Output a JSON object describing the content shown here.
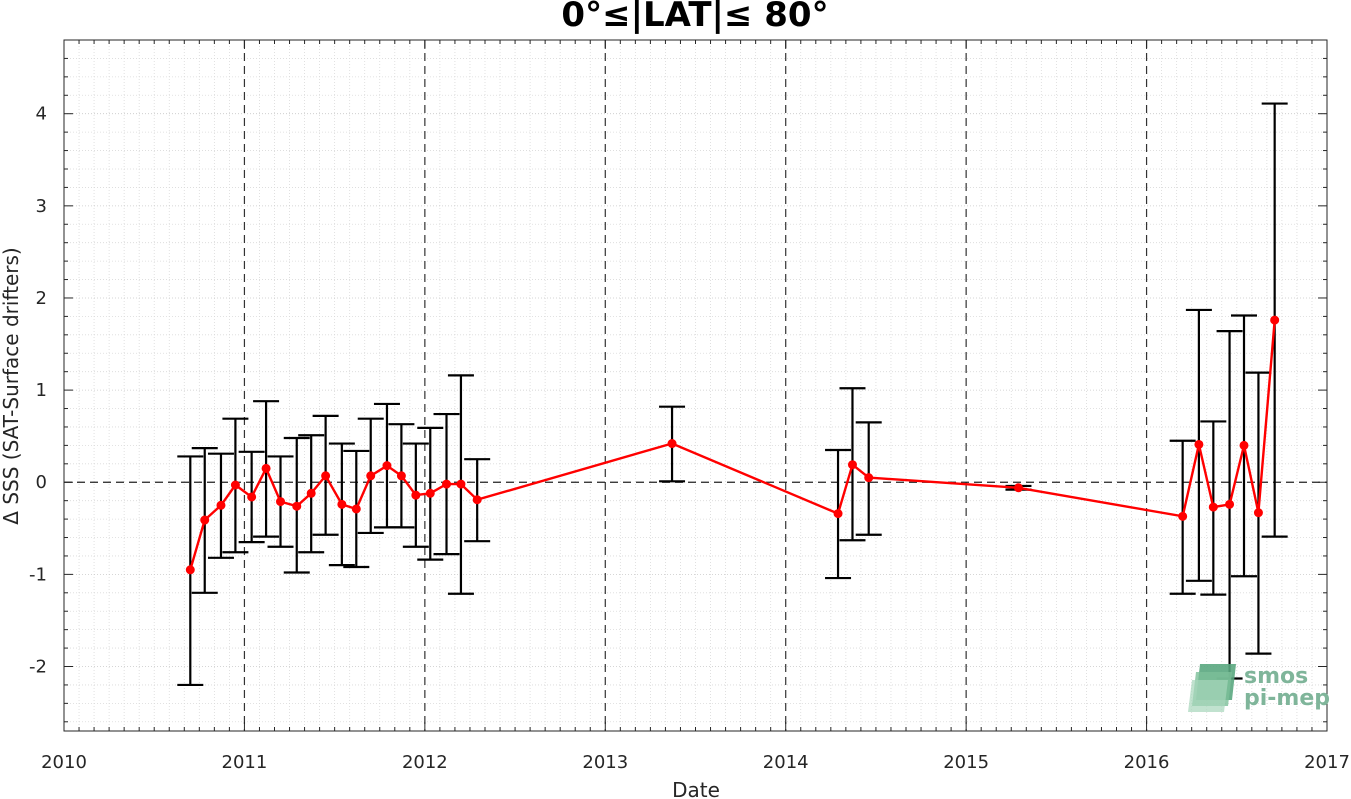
{
  "chart_data": {
    "type": "line",
    "title": "0°≤|LAT|≤ 80°",
    "xlabel": "Date",
    "ylabel": "Δ SSS (SAT-Surface drifters)",
    "xlim": [
      2010,
      2017
    ],
    "ylim": [
      -2.7,
      4.8
    ],
    "x_ticks": [
      "2010",
      "2011",
      "2012",
      "2013",
      "2014",
      "2015",
      "2016",
      "2017"
    ],
    "y_ticks": [
      "-2",
      "-1",
      "0",
      "1",
      "2",
      "3",
      "4"
    ],
    "grid": "major dashed vertical at years, minor dotted",
    "zero_line": true,
    "series": [
      {
        "color": "#ff0000",
        "errorbar_color": "#000000",
        "points": [
          {
            "x": 2010.7,
            "y": -0.95,
            "low": -2.2,
            "high": 0.28
          },
          {
            "x": 2010.78,
            "y": -0.41,
            "low": -1.2,
            "high": 0.37
          },
          {
            "x": 2010.87,
            "y": -0.25,
            "low": -0.82,
            "high": 0.31
          },
          {
            "x": 2010.95,
            "y": -0.03,
            "low": -0.76,
            "high": 0.69
          },
          {
            "x": 2011.04,
            "y": -0.16,
            "low": -0.65,
            "high": 0.33
          },
          {
            "x": 2011.12,
            "y": 0.15,
            "low": -0.59,
            "high": 0.88
          },
          {
            "x": 2011.2,
            "y": -0.21,
            "low": -0.7,
            "high": 0.28
          },
          {
            "x": 2011.29,
            "y": -0.26,
            "low": -0.98,
            "high": 0.48
          },
          {
            "x": 2011.37,
            "y": -0.12,
            "low": -0.76,
            "high": 0.51
          },
          {
            "x": 2011.45,
            "y": 0.07,
            "low": -0.57,
            "high": 0.72
          },
          {
            "x": 2011.54,
            "y": -0.24,
            "low": -0.9,
            "high": 0.42
          },
          {
            "x": 2011.62,
            "y": -0.29,
            "low": -0.92,
            "high": 0.34
          },
          {
            "x": 2011.7,
            "y": 0.07,
            "low": -0.55,
            "high": 0.69
          },
          {
            "x": 2011.79,
            "y": 0.18,
            "low": -0.49,
            "high": 0.85
          },
          {
            "x": 2011.87,
            "y": 0.07,
            "low": -0.49,
            "high": 0.63
          },
          {
            "x": 2011.95,
            "y": -0.14,
            "low": -0.7,
            "high": 0.42
          },
          {
            "x": 2012.03,
            "y": -0.12,
            "low": -0.84,
            "high": 0.59
          },
          {
            "x": 2012.12,
            "y": -0.02,
            "low": -0.78,
            "high": 0.74
          },
          {
            "x": 2012.2,
            "y": -0.02,
            "low": -1.21,
            "high": 1.16
          },
          {
            "x": 2012.29,
            "y": -0.19,
            "low": -0.64,
            "high": 0.25
          },
          {
            "x": 2013.37,
            "y": 0.42,
            "low": 0.01,
            "high": 0.82
          },
          {
            "x": 2014.29,
            "y": -0.34,
            "low": -1.04,
            "high": 0.35
          },
          {
            "x": 2014.37,
            "y": 0.19,
            "low": -0.63,
            "high": 1.02
          },
          {
            "x": 2014.46,
            "y": 0.05,
            "low": -0.57,
            "high": 0.65
          },
          {
            "x": 2015.29,
            "y": -0.06,
            "low": -0.08,
            "high": -0.04
          },
          {
            "x": 2016.2,
            "y": -0.37,
            "low": -1.21,
            "high": 0.45
          },
          {
            "x": 2016.29,
            "y": 0.41,
            "low": -1.07,
            "high": 1.87
          },
          {
            "x": 2016.37,
            "y": -0.27,
            "low": -1.22,
            "high": 0.66
          },
          {
            "x": 2016.46,
            "y": -0.24,
            "low": -2.13,
            "high": 1.64
          },
          {
            "x": 2016.54,
            "y": 0.4,
            "low": -1.02,
            "high": 1.81
          },
          {
            "x": 2016.62,
            "y": -0.33,
            "low": -1.86,
            "high": 1.19
          },
          {
            "x": 2016.71,
            "y": 1.76,
            "low": -0.59,
            "high": 4.11
          }
        ]
      }
    ]
  },
  "logo": {
    "line1": "smos",
    "line2": "pi-mep"
  }
}
